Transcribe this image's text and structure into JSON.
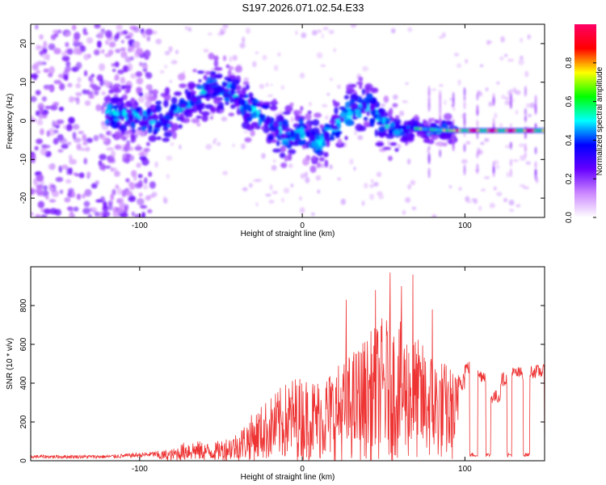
{
  "title": "S197.2026.071.02.54.E33",
  "chart_data": [
    {
      "type": "heatmap",
      "xlabel": "Height of straight line (km)",
      "ylabel": "Frequency (Hz)",
      "xlim": [
        -167,
        149
      ],
      "ylim": [
        -25,
        25
      ],
      "xticks": [
        -100,
        0,
        100
      ],
      "yticks": [
        -20,
        -10,
        0,
        10,
        20
      ],
      "colorbar": {
        "label": "Normalized spectral amplitude",
        "range": [
          0.0,
          1.0
        ],
        "ticks": [
          0.0,
          0.2,
          0.4,
          0.6,
          0.8
        ],
        "colors": [
          "#ffffff",
          "#cc88ff",
          "#6600ff",
          "#0000ff",
          "#00ffff",
          "#00ff00",
          "#ffff00",
          "#ff0000",
          "#ff0066"
        ]
      },
      "ridge": [
        {
          "x": -115,
          "f": 2
        },
        {
          "x": -100,
          "f": 1
        },
        {
          "x": -85,
          "f": 0
        },
        {
          "x": -70,
          "f": 5
        },
        {
          "x": -55,
          "f": 9
        },
        {
          "x": -40,
          "f": 6
        },
        {
          "x": -25,
          "f": 1
        },
        {
          "x": -10,
          "f": -4
        },
        {
          "x": 0,
          "f": -3
        },
        {
          "x": 10,
          "f": -6
        },
        {
          "x": 25,
          "f": 1
        },
        {
          "x": 40,
          "f": 4
        },
        {
          "x": 55,
          "f": -3
        },
        {
          "x": 70,
          "f": -2
        },
        {
          "x": 90,
          "f": -2.5
        },
        {
          "x": 110,
          "f": -2.5
        },
        {
          "x": 145,
          "f": -2.5
        }
      ]
    },
    {
      "type": "line",
      "xlabel": "Height of straight line (km)",
      "ylabel": "SNR (10 * v/v)",
      "xlim": [
        -167,
        149
      ],
      "ylim": [
        0,
        1000
      ],
      "xticks": [
        -100,
        0,
        100
      ],
      "yticks": [
        0,
        200,
        400,
        600,
        800
      ],
      "color": "#ee3333",
      "envelope": [
        {
          "x": -167,
          "y": 30
        },
        {
          "x": -120,
          "y": 30
        },
        {
          "x": -95,
          "y": 45
        },
        {
          "x": -80,
          "y": 60
        },
        {
          "x": -70,
          "y": 110
        },
        {
          "x": -55,
          "y": 90
        },
        {
          "x": -40,
          "y": 150
        },
        {
          "x": -30,
          "y": 250
        },
        {
          "x": -20,
          "y": 330
        },
        {
          "x": -5,
          "y": 440
        },
        {
          "x": 10,
          "y": 430
        },
        {
          "x": 25,
          "y": 520
        },
        {
          "x": 40,
          "y": 650
        },
        {
          "x": 50,
          "y": 750
        },
        {
          "x": 60,
          "y": 720
        },
        {
          "x": 75,
          "y": 600
        },
        {
          "x": 90,
          "y": 500
        },
        {
          "x": 96,
          "y": 450
        }
      ],
      "plateaus": [
        {
          "from": 100,
          "to": 103,
          "y": 480
        },
        {
          "from": 103,
          "to": 108,
          "y": 20
        },
        {
          "from": 108,
          "to": 113,
          "y": 440
        },
        {
          "from": 113,
          "to": 116,
          "y": 20
        },
        {
          "from": 116,
          "to": 122,
          "y": 330
        },
        {
          "from": 122,
          "to": 126,
          "y": 420
        },
        {
          "from": 126,
          "to": 129,
          "y": 20
        },
        {
          "from": 129,
          "to": 136,
          "y": 450
        },
        {
          "from": 136,
          "to": 140,
          "y": 20
        },
        {
          "from": 140,
          "to": 149,
          "y": 460
        }
      ],
      "peaks": [
        {
          "x": 54,
          "y": 970
        },
        {
          "x": 68,
          "y": 960
        },
        {
          "x": 27,
          "y": 830
        },
        {
          "x": 45,
          "y": 880
        },
        {
          "x": 61,
          "y": 900
        },
        {
          "x": 80,
          "y": 780
        }
      ]
    }
  ]
}
